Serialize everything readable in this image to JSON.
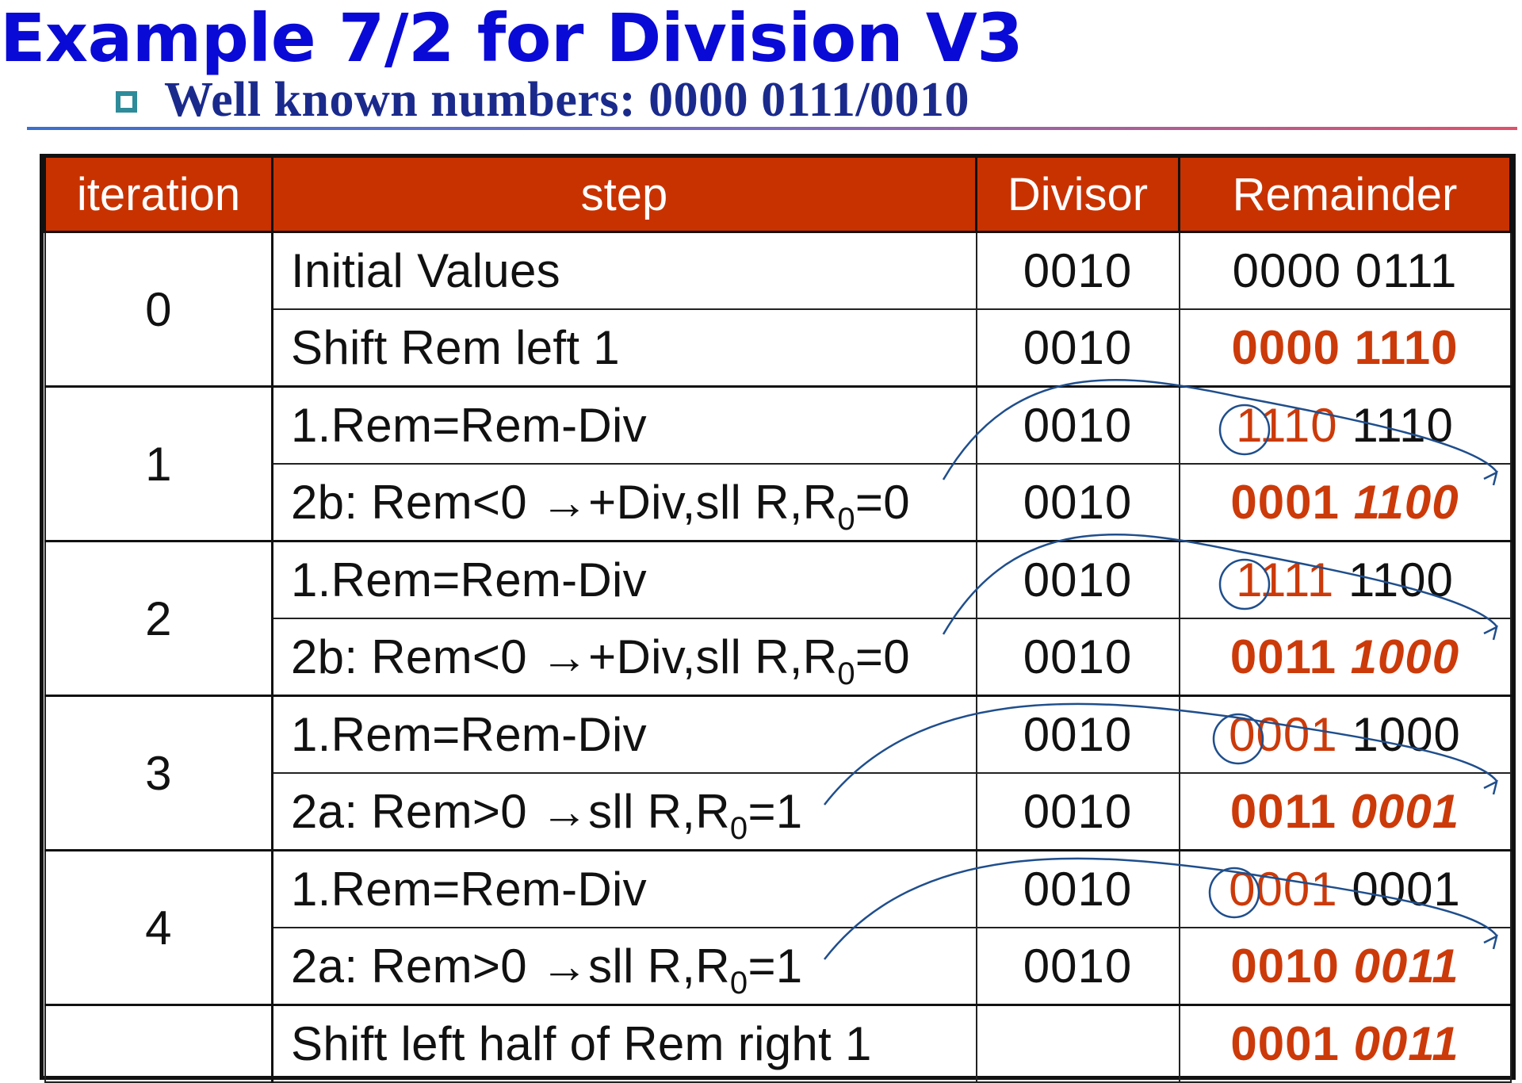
{
  "slide": {
    "title": "Example 7/2 for Division V3",
    "bullet": "Well known numbers: 0000 0111/0010"
  },
  "table": {
    "headers": {
      "iteration": "iteration",
      "step": "step",
      "divisor": "Divisor",
      "remainder": "Remainder"
    },
    "iterations": [
      {
        "label": "0"
      },
      {
        "label": "1"
      },
      {
        "label": "2"
      },
      {
        "label": "3"
      },
      {
        "label": "4"
      },
      {
        "label": ""
      }
    ],
    "rows": [
      {
        "step": "Initial Values",
        "divisor": "0010",
        "rem_left": "0000",
        "rem_right": "0111"
      },
      {
        "step": "Shift Rem left 1",
        "divisor": "0010",
        "rem_left": "0000",
        "rem_right": "1110"
      },
      {
        "step": "1.Rem=Rem-Div",
        "divisor": "0010",
        "rem_left": "1110",
        "rem_right": "1110"
      },
      {
        "step_pre": "2b: Rem<0 →+Div,sll R,R",
        "step_sub": "0",
        "step_post": "=0",
        "divisor": "0010",
        "rem_left": "0001",
        "rem_right": "1100"
      },
      {
        "step": "1.Rem=Rem-Div",
        "divisor": "0010",
        "rem_left": "1111",
        "rem_right": "1100"
      },
      {
        "step_pre": "2b: Rem<0 →+Div,sll R,R",
        "step_sub": "0",
        "step_post": "=0",
        "divisor": "0010",
        "rem_left": "0011",
        "rem_right": "1000"
      },
      {
        "step": "1.Rem=Rem-Div",
        "divisor": "0010",
        "rem_left": "0001",
        "rem_right": "1000"
      },
      {
        "step_pre": "2a: Rem>0 →sll R,R",
        "step_sub": "0",
        "step_post": "=1",
        "divisor": "0010",
        "rem_left": "0011",
        "rem_right": "0001"
      },
      {
        "step": "1.Rem=Rem-Div",
        "divisor": "0010",
        "rem_left": "0001",
        "rem_right": "0001"
      },
      {
        "step_pre": "2a: Rem>0 →sll R,R",
        "step_sub": "0",
        "step_post": "=1",
        "divisor": "0010",
        "rem_left": "0010",
        "rem_right": "0011"
      },
      {
        "step": "Shift left half of Rem right 1",
        "divisor": "",
        "rem_left": "0001",
        "rem_right": "0011"
      }
    ]
  },
  "colors": {
    "title": "#0a0ad6",
    "header_bg": "#c83200",
    "highlight": "#cc3a0a",
    "annotation": "#1f4e8c"
  }
}
